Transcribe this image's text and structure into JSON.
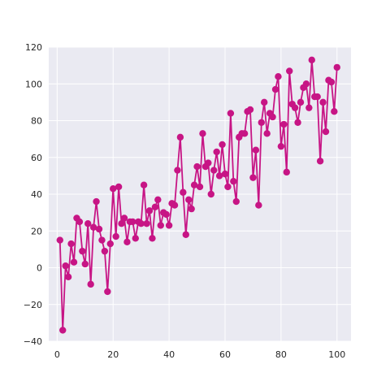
{
  "chart_data": {
    "type": "line",
    "title": "",
    "xlabel": "",
    "ylabel": "",
    "xlim": [
      -3,
      105
    ],
    "ylim": [
      -40,
      120
    ],
    "xticks": [
      0,
      20,
      40,
      60,
      80,
      100
    ],
    "yticks": [
      -40,
      -20,
      0,
      20,
      40,
      60,
      80,
      100,
      120
    ],
    "xtick_labels": [
      "0",
      "20",
      "40",
      "60",
      "80",
      "100"
    ],
    "ytick_labels": [
      "−40",
      "−20",
      "0",
      "20",
      "40",
      "60",
      "80",
      "100",
      "120"
    ],
    "grid": true,
    "legend": "none",
    "colors": {
      "series": "#c71585",
      "plot_background": "#eaeaf2",
      "grid": "#ffffff"
    },
    "series": [
      {
        "x": [
          1,
          2,
          3,
          4,
          5,
          6,
          7,
          8,
          9,
          10,
          11,
          12,
          13,
          14,
          15,
          16,
          17,
          18,
          19,
          20,
          21,
          22,
          23,
          24,
          25,
          26,
          27,
          28,
          29,
          30,
          31,
          32,
          33,
          34,
          35,
          36,
          37,
          38,
          39,
          40,
          41,
          42,
          43,
          44,
          45,
          46,
          47,
          48,
          49,
          50,
          51,
          52,
          53,
          54,
          55,
          56,
          57,
          58,
          59,
          60,
          61,
          62,
          63,
          64,
          65,
          66,
          67,
          68,
          69,
          70,
          71,
          72,
          73,
          74,
          75,
          76,
          77,
          78,
          79,
          80,
          81,
          82,
          83,
          84,
          85,
          86,
          87,
          88,
          89,
          90,
          91,
          92,
          93,
          94,
          95,
          96,
          97,
          98,
          99,
          100
        ],
        "y": [
          15,
          -34,
          1,
          -5,
          13,
          3,
          27,
          25,
          9,
          2,
          24,
          -9,
          22,
          36,
          21,
          15,
          9,
          -13,
          13,
          43,
          17,
          44,
          24,
          27,
          14,
          25,
          25,
          16,
          25,
          24,
          45,
          24,
          31,
          16,
          33,
          37,
          23,
          30,
          29,
          23,
          35,
          34,
          53,
          71,
          41,
          18,
          37,
          32,
          45,
          55,
          44,
          73,
          55,
          57,
          40,
          53,
          63,
          50,
          67,
          51,
          44,
          84,
          47,
          36,
          71,
          73,
          73,
          85,
          86,
          49,
          64,
          34,
          79,
          90,
          73,
          84,
          82,
          97,
          104,
          66,
          78,
          52,
          107,
          89,
          87,
          79,
          90,
          98,
          100,
          87,
          113,
          93,
          93,
          58,
          90,
          74,
          102,
          101,
          85,
          109
        ]
      }
    ]
  }
}
